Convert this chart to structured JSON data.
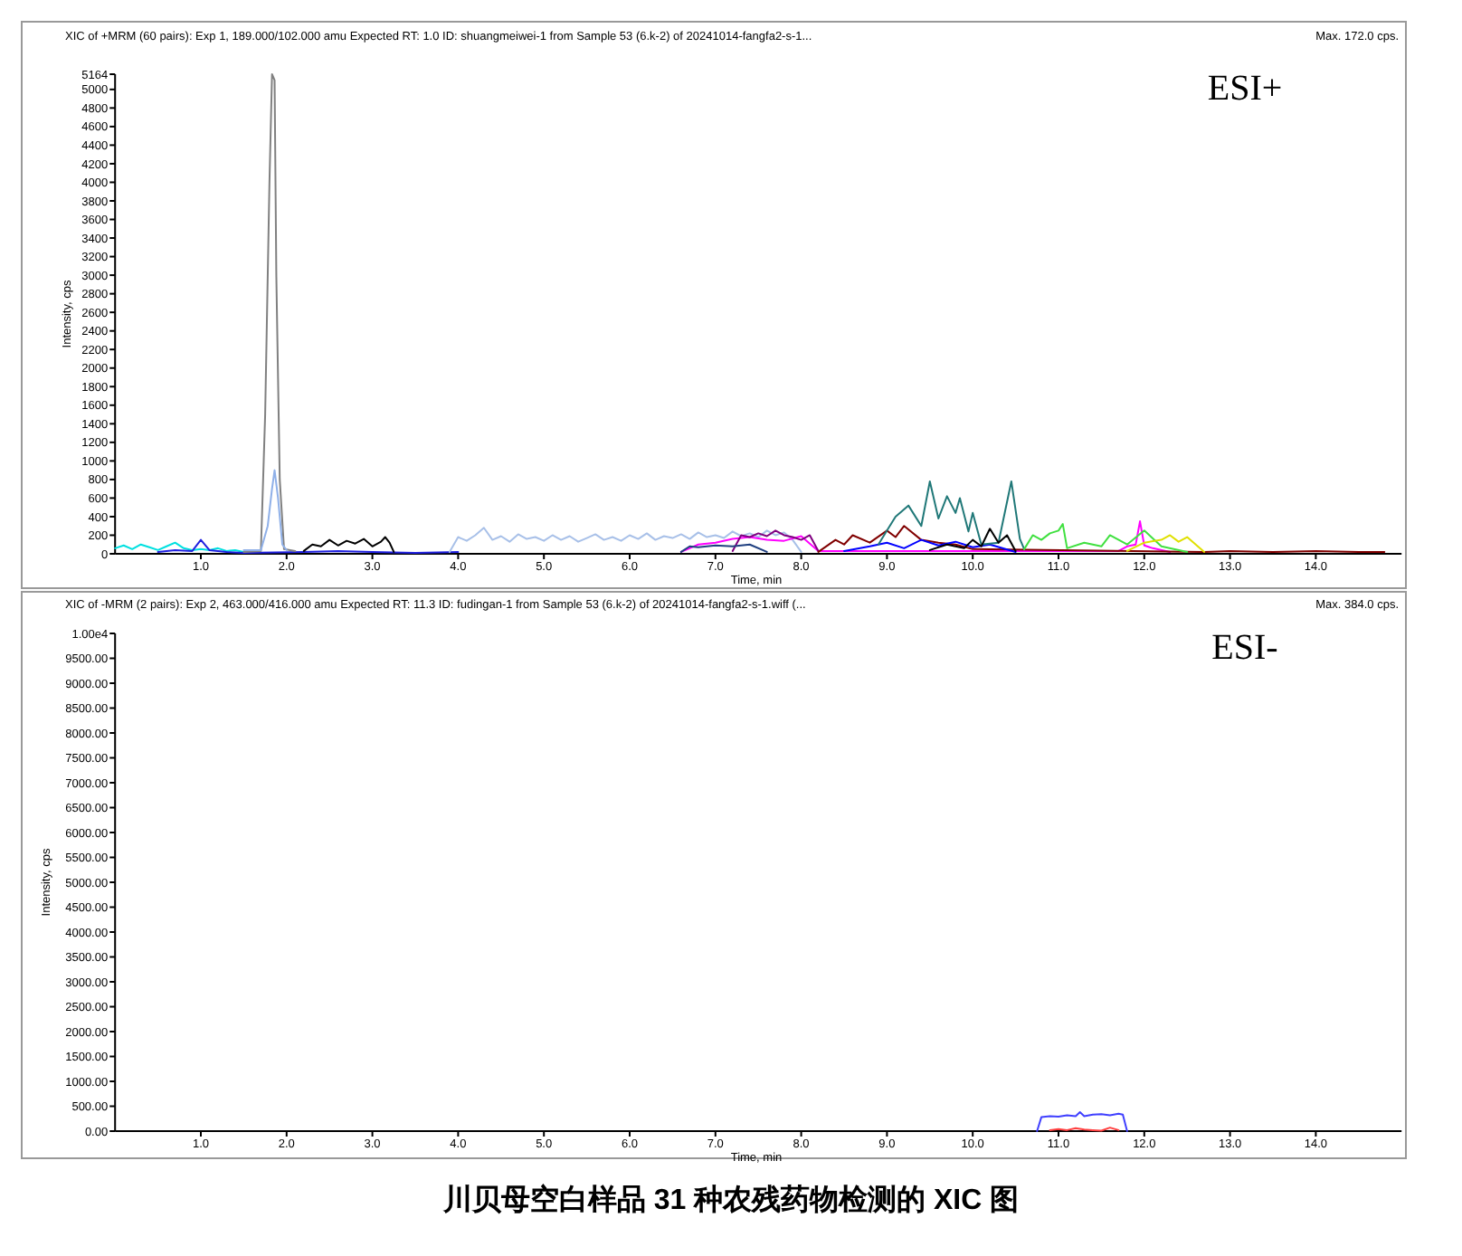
{
  "chart_data": [
    {
      "type": "line",
      "title": "XIC of +MRM (60 pairs): Exp 1, 189.000/102.000 amu Expected RT: 1.0 ID: shuangmeiwei-1 from Sample 53 (6.k-2) of 20241014-fangfa2-s-1...",
      "subtitle": "Max. 172.0 cps.",
      "xlabel": "Time, min",
      "ylabel": "Intensity, cps",
      "annotations": [
        "ESI+"
      ],
      "xlim": [
        0,
        15
      ],
      "ylim": [
        0,
        5164
      ],
      "xticks": [
        {
          "value": 1,
          "label": "1.0"
        },
        {
          "value": 2,
          "label": "2.0"
        },
        {
          "value": 3,
          "label": "3.0"
        },
        {
          "value": 4,
          "label": "4.0"
        },
        {
          "value": 5,
          "label": "5.0"
        },
        {
          "value": 6,
          "label": "6.0"
        },
        {
          "value": 7,
          "label": "7.0"
        },
        {
          "value": 8,
          "label": "8.0"
        },
        {
          "value": 9,
          "label": "9.0"
        },
        {
          "value": 10,
          "label": "10.0"
        },
        {
          "value": 11,
          "label": "11.0"
        },
        {
          "value": 12,
          "label": "12.0"
        },
        {
          "value": 13,
          "label": "13.0"
        },
        {
          "value": 14,
          "label": "14.0"
        }
      ],
      "yticks": [
        0,
        200,
        400,
        600,
        800,
        1000,
        1200,
        1400,
        1600,
        1800,
        2000,
        2200,
        2400,
        2600,
        2800,
        3000,
        3200,
        3400,
        3600,
        3800,
        4000,
        4200,
        4400,
        4600,
        4800,
        5000,
        5164
      ],
      "series": [
        {
          "color": "#00e0e0",
          "x": [
            0,
            0.1,
            0.2,
            0.3,
            0.4,
            0.5,
            0.6,
            0.7,
            0.8,
            0.9,
            1.0,
            1.1,
            1.2,
            1.3,
            1.4,
            1.5
          ],
          "values": [
            60,
            90,
            50,
            100,
            70,
            40,
            80,
            120,
            60,
            40,
            50,
            40,
            60,
            30,
            40,
            20
          ]
        },
        {
          "color": "#2020e0",
          "x": [
            0.5,
            0.7,
            0.9,
            1.0,
            1.1,
            1.3,
            1.5,
            2.2,
            2.6,
            3.0,
            3.5,
            4.0
          ],
          "values": [
            20,
            40,
            30,
            150,
            40,
            20,
            10,
            20,
            30,
            20,
            10,
            20
          ]
        },
        {
          "color": "#000000",
          "x": [
            2.2,
            2.3,
            2.4,
            2.5,
            2.6,
            2.7,
            2.8,
            2.9,
            3.0,
            3.1,
            3.15,
            3.2,
            3.25
          ],
          "values": [
            30,
            100,
            80,
            150,
            90,
            140,
            110,
            160,
            80,
            130,
            180,
            120,
            20
          ]
        },
        {
          "color": "#a8c0e8",
          "x": [
            3.9,
            4.0,
            4.1,
            4.2,
            4.3,
            4.4,
            4.5,
            4.6,
            4.7,
            4.8,
            4.9,
            5.0,
            5.1,
            5.2,
            5.3,
            5.4,
            5.5,
            5.6,
            5.7,
            5.8,
            5.9,
            6.0,
            6.1,
            6.2,
            6.3,
            6.4,
            6.5,
            6.6,
            6.7,
            6.8,
            6.9,
            7.0,
            7.1,
            7.2,
            7.3,
            7.4,
            7.5,
            7.6,
            7.7,
            7.8,
            7.9,
            8.0
          ],
          "values": [
            20,
            180,
            140,
            200,
            280,
            150,
            190,
            130,
            210,
            160,
            180,
            140,
            200,
            150,
            190,
            130,
            170,
            210,
            150,
            180,
            140,
            200,
            160,
            220,
            150,
            190,
            170,
            210,
            160,
            230,
            180,
            200,
            170,
            240,
            190,
            220,
            180,
            250,
            200,
            230,
            150,
            20
          ]
        },
        {
          "color": "#ff00ff",
          "x": [
            6.6,
            6.8,
            7.0,
            7.2,
            7.4,
            7.6,
            7.8,
            8.0,
            8.2,
            11.7,
            11.8,
            11.9,
            11.95,
            12.0,
            12.1,
            12.3
          ],
          "values": [
            20,
            100,
            120,
            160,
            180,
            150,
            140,
            190,
            30,
            30,
            80,
            100,
            350,
            90,
            60,
            20
          ]
        },
        {
          "color": "#800080",
          "x": [
            7.2,
            7.3,
            7.4,
            7.5,
            7.6,
            7.7,
            7.8,
            7.9,
            8.0,
            8.1,
            8.2
          ],
          "values": [
            30,
            200,
            180,
            220,
            190,
            250,
            200,
            180,
            150,
            200,
            30
          ]
        },
        {
          "color": "#204080",
          "x": [
            6.6,
            6.7,
            6.8,
            7.0,
            7.2,
            7.4,
            7.6
          ],
          "values": [
            20,
            80,
            70,
            90,
            80,
            100,
            20
          ]
        },
        {
          "color": "#800000",
          "x": [
            8.2,
            8.4,
            8.5,
            8.6,
            8.8,
            9.0,
            9.1,
            9.2,
            9.4,
            9.6,
            9.8,
            10.0,
            12.7,
            13.0,
            13.5,
            14.0,
            14.5,
            14.8
          ],
          "values": [
            20,
            150,
            100,
            200,
            120,
            250,
            180,
            300,
            150,
            120,
            100,
            50,
            20,
            30,
            20,
            30,
            20,
            20
          ]
        },
        {
          "color": "#0000ff",
          "x": [
            8.5,
            8.8,
            9.0,
            9.2,
            9.4,
            9.6,
            9.8,
            10.0,
            10.2,
            10.5
          ],
          "values": [
            30,
            80,
            120,
            60,
            150,
            90,
            130,
            70,
            100,
            20
          ]
        },
        {
          "color": "#207878",
          "x": [
            8.9,
            9.0,
            9.1,
            9.25,
            9.4,
            9.5,
            9.6,
            9.7,
            9.8,
            9.85,
            9.95,
            10.0,
            10.1,
            10.3,
            10.45,
            10.55,
            10.6
          ],
          "values": [
            100,
            250,
            400,
            520,
            300,
            780,
            380,
            620,
            440,
            600,
            240,
            440,
            100,
            120,
            780,
            160,
            50
          ]
        },
        {
          "color": "#000000",
          "x": [
            9.5,
            9.7,
            9.9,
            10.0,
            10.1,
            10.2,
            10.3,
            10.4,
            10.5
          ],
          "values": [
            40,
            100,
            60,
            150,
            80,
            270,
            120,
            200,
            30
          ]
        },
        {
          "color": "#40e040",
          "x": [
            10.6,
            10.7,
            10.8,
            10.9,
            11.0,
            11.05,
            11.1,
            11.3,
            11.5,
            11.6,
            11.8,
            12.0,
            12.2,
            12.5
          ],
          "values": [
            50,
            200,
            150,
            220,
            250,
            320,
            60,
            120,
            80,
            200,
            100,
            250,
            80,
            20
          ]
        },
        {
          "color": "#e0e000",
          "x": [
            11.8,
            12.0,
            12.2,
            12.3,
            12.4,
            12.5,
            12.6,
            12.7
          ],
          "values": [
            30,
            120,
            150,
            200,
            130,
            180,
            100,
            20
          ]
        },
        {
          "color": "#808080",
          "x": [
            1.5,
            1.7,
            1.75,
            1.8,
            1.83,
            1.86,
            1.88,
            1.92,
            1.97,
            2.1
          ],
          "values": [
            20,
            30,
            1500,
            4000,
            5164,
            5100,
            3000,
            800,
            50,
            30
          ]
        },
        {
          "color": "#8fb0e8",
          "x": [
            1.5,
            1.7,
            1.78,
            1.83,
            1.86,
            1.9,
            1.95,
            2.0
          ],
          "values": [
            40,
            40,
            300,
            700,
            900,
            600,
            100,
            40
          ]
        }
      ]
    },
    {
      "type": "line",
      "title": "XIC of -MRM (2 pairs): Exp 2, 463.000/416.000 amu Expected RT: 11.3 ID: fudingan-1 from Sample 53 (6.k-2) of 20241014-fangfa2-s-1.wiff (...",
      "subtitle": "Max. 384.0 cps.",
      "xlabel": "Time, min",
      "ylabel": "Intensity, cps",
      "annotations": [
        "ESI-",
        "川贝母空白样品 31 种农残药物检测的 XIC 图"
      ],
      "xlim": [
        0,
        15
      ],
      "ylim": [
        0,
        10000
      ],
      "xticks": [
        {
          "value": 1,
          "label": "1.0"
        },
        {
          "value": 2,
          "label": "2.0"
        },
        {
          "value": 3,
          "label": "3.0"
        },
        {
          "value": 4,
          "label": "4.0"
        },
        {
          "value": 5,
          "label": "5.0"
        },
        {
          "value": 6,
          "label": "6.0"
        },
        {
          "value": 7,
          "label": "7.0"
        },
        {
          "value": 8,
          "label": "8.0"
        },
        {
          "value": 9,
          "label": "9.0"
        },
        {
          "value": 10,
          "label": "10.0"
        },
        {
          "value": 11,
          "label": "11.0"
        },
        {
          "value": 12,
          "label": "12.0"
        },
        {
          "value": 13,
          "label": "13.0"
        },
        {
          "value": 14,
          "label": "14.0"
        }
      ],
      "yticks": [
        {
          "value": 0,
          "label": "0.00"
        },
        {
          "value": 500,
          "label": "500.00"
        },
        {
          "value": 1000,
          "label": "1000.00"
        },
        {
          "value": 1500,
          "label": "1500.00"
        },
        {
          "value": 2000,
          "label": "2000.00"
        },
        {
          "value": 2500,
          "label": "2500.00"
        },
        {
          "value": 3000,
          "label": "3000.00"
        },
        {
          "value": 3500,
          "label": "3500.00"
        },
        {
          "value": 4000,
          "label": "4000.00"
        },
        {
          "value": 4500,
          "label": "4500.00"
        },
        {
          "value": 5000,
          "label": "5000.00"
        },
        {
          "value": 5500,
          "label": "5500.00"
        },
        {
          "value": 6000,
          "label": "6000.00"
        },
        {
          "value": 6500,
          "label": "6500.00"
        },
        {
          "value": 7000,
          "label": "7000.00"
        },
        {
          "value": 7500,
          "label": "7500.00"
        },
        {
          "value": 8000,
          "label": "8000.00"
        },
        {
          "value": 8500,
          "label": "8500.00"
        },
        {
          "value": 9000,
          "label": "9000.00"
        },
        {
          "value": 9500,
          "label": "9500.00"
        },
        {
          "value": 10000,
          "label": "1.00e4"
        }
      ],
      "series": [
        {
          "color": "#ff4040",
          "x": [
            10.9,
            11.0,
            11.1,
            11.2,
            11.3,
            11.4,
            11.5,
            11.6,
            11.7
          ],
          "values": [
            20,
            40,
            20,
            60,
            30,
            20,
            10,
            70,
            20
          ]
        },
        {
          "color": "#4040ff",
          "x": [
            10.75,
            10.8,
            10.9,
            11.0,
            11.1,
            11.2,
            11.25,
            11.3,
            11.4,
            11.5,
            11.6,
            11.7,
            11.75,
            11.8
          ],
          "values": [
            0,
            280,
            300,
            290,
            320,
            300,
            380,
            300,
            330,
            340,
            320,
            350,
            330,
            0
          ]
        }
      ]
    }
  ]
}
